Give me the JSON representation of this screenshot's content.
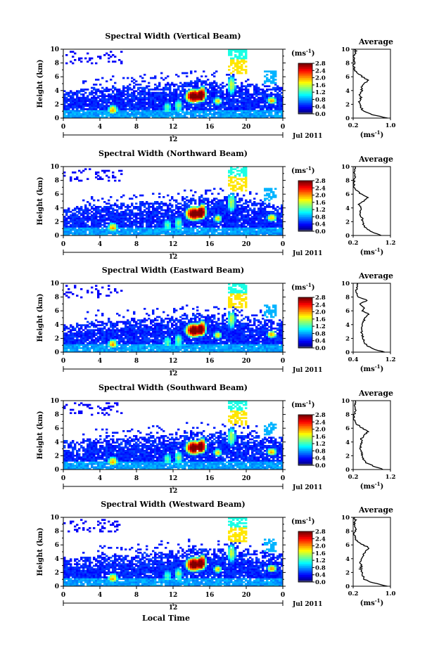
{
  "units": "(ms-1)",
  "units_base": "(ms",
  "units_sup": "-1",
  "units_close": ")",
  "avg_title": "Average",
  "y_label": "Height (km)",
  "x_label": "Local Time",
  "date_label": "Jul 2011",
  "sub_axis_label": "12",
  "time_ticks": [
    "0",
    "4",
    "8",
    "12",
    "16",
    "20",
    "0"
  ],
  "height_ticks": [
    "0",
    "2",
    "4",
    "6",
    "8",
    "10"
  ],
  "colorbar_ticks": [
    "0.0",
    "0.4",
    "0.8",
    "1.2",
    "1.6",
    "2.0",
    "2.4",
    "2.8"
  ],
  "chart_data": [
    {
      "type": "heatmap",
      "title": "Spectral Width (Vertical Beam)",
      "xlim": [
        0,
        24
      ],
      "ylim": [
        0,
        10
      ],
      "avg_profile": {
        "xlim": [
          0.2,
          1.0
        ],
        "xticks": [
          "0.2",
          "1.0"
        ],
        "height": [
          0,
          0.5,
          1,
          1.5,
          2,
          2.5,
          3,
          3.5,
          4,
          4.5,
          5,
          5.5,
          6,
          6.5,
          7,
          7.5,
          8,
          8.5,
          9,
          9.5,
          10
        ],
        "value": [
          0.95,
          0.6,
          0.42,
          0.38,
          0.34,
          0.33,
          0.36,
          0.34,
          0.38,
          0.37,
          0.44,
          0.52,
          0.4,
          0.3,
          0.22,
          0.21,
          0.22,
          0.24,
          0.22,
          0.24,
          0.26
        ]
      }
    },
    {
      "type": "heatmap",
      "title": "Spectral Width (Northward Beam)",
      "xlim": [
        0,
        24
      ],
      "ylim": [
        0,
        10
      ],
      "avg_profile": {
        "xlim": [
          0.2,
          1.2
        ],
        "xticks": [
          "0.2",
          "1.2"
        ],
        "height": [
          0,
          0.5,
          1,
          1.5,
          2,
          2.5,
          3,
          3.5,
          4,
          4.5,
          5,
          5.5,
          6,
          6.5,
          7,
          7.5,
          8,
          8.5,
          9,
          9.5,
          10
        ],
        "value": [
          0.95,
          0.7,
          0.55,
          0.48,
          0.45,
          0.44,
          0.4,
          0.38,
          0.42,
          0.36,
          0.48,
          0.58,
          0.42,
          0.3,
          0.23,
          0.22,
          0.23,
          0.26,
          0.23,
          0.25,
          0.24
        ]
      }
    },
    {
      "type": "heatmap",
      "title": "Spectral Width (Eastward Beam)",
      "xlim": [
        0,
        24
      ],
      "ylim": [
        0,
        10
      ],
      "avg_profile": {
        "xlim": [
          0.2,
          1.2
        ],
        "xticks": [
          "0.4",
          "1.2"
        ],
        "height": [
          0,
          0.5,
          1,
          1.5,
          2,
          2.5,
          3,
          3.5,
          4,
          4.5,
          5,
          5.5,
          6,
          6.5,
          7,
          7.5,
          8,
          8.5,
          9,
          9.5,
          10
        ],
        "value": [
          1.05,
          0.72,
          0.55,
          0.5,
          0.46,
          0.45,
          0.42,
          0.41,
          0.44,
          0.48,
          0.52,
          0.62,
          0.45,
          0.5,
          0.38,
          0.58,
          0.34,
          0.3,
          0.28,
          0.32,
          0.3
        ]
      }
    },
    {
      "type": "heatmap",
      "title": "Spectral Width (Southward Beam)",
      "xlim": [
        0,
        24
      ],
      "ylim": [
        0,
        10
      ],
      "avg_profile": {
        "xlim": [
          0.2,
          1.2
        ],
        "xticks": [
          "0.2",
          "1.2"
        ],
        "height": [
          0,
          0.5,
          1,
          1.5,
          2,
          2.5,
          3,
          3.5,
          4,
          4.5,
          5,
          5.5,
          6,
          6.5,
          7,
          7.5,
          8,
          8.5,
          9,
          9.5,
          10
        ],
        "value": [
          1.0,
          0.75,
          0.55,
          0.48,
          0.45,
          0.42,
          0.4,
          0.4,
          0.44,
          0.42,
          0.5,
          0.6,
          0.45,
          0.32,
          0.24,
          0.22,
          0.23,
          0.26,
          0.24,
          0.26,
          0.25
        ]
      }
    },
    {
      "type": "heatmap",
      "title": "Spectral Width (Westward Beam)",
      "xlim": [
        0,
        24
      ],
      "ylim": [
        0,
        10
      ],
      "avg_profile": {
        "xlim": [
          0.2,
          1.0
        ],
        "xticks": [
          "0.2",
          "1.0"
        ],
        "height": [
          0,
          0.5,
          1,
          1.5,
          2,
          2.5,
          3,
          3.5,
          4,
          4.5,
          5,
          5.5,
          6,
          6.5,
          7,
          7.5,
          8,
          8.5,
          9,
          9.5,
          10
        ],
        "value": [
          0.95,
          0.62,
          0.45,
          0.4,
          0.38,
          0.36,
          0.38,
          0.35,
          0.4,
          0.42,
          0.46,
          0.55,
          0.42,
          0.3,
          0.24,
          0.22,
          0.24,
          0.27,
          0.22,
          0.25,
          0.24
        ]
      }
    }
  ]
}
